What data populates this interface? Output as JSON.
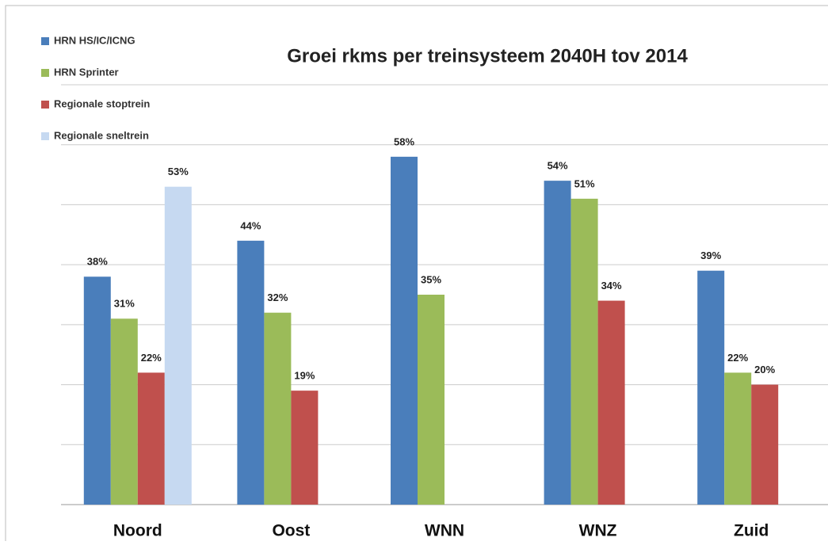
{
  "chart_data": {
    "type": "bar",
    "title": "Groei rkms per treinsysteem 2040H tov 2014",
    "categories": [
      "Noord",
      "Oost",
      "WNN",
      "WNZ",
      "Zuid"
    ],
    "series": [
      {
        "name": "HRN HS/IC/ICNG",
        "color": "#4a7ebb",
        "values": [
          38,
          44,
          58,
          54,
          39
        ],
        "value_labels": [
          "38%",
          "44%",
          "58%",
          "54%",
          "39%"
        ]
      },
      {
        "name": "HRN Sprinter",
        "color": "#9bbb59",
        "values": [
          31,
          32,
          35,
          51,
          22
        ],
        "value_labels": [
          "31%",
          "32%",
          "35%",
          "51%",
          "22%"
        ]
      },
      {
        "name": "Regionale stoptrein",
        "color": "#c0504d",
        "values": [
          22,
          19,
          null,
          34,
          20
        ],
        "value_labels": [
          "22%",
          "19%",
          null,
          "34%",
          "20%"
        ]
      },
      {
        "name": "Regionale sneltrein",
        "color": "#c6d9f1",
        "values": [
          53,
          null,
          null,
          null,
          null
        ],
        "value_labels": [
          "53%",
          null,
          null,
          null,
          null
        ]
      }
    ],
    "ylim": [
      0,
      70
    ],
    "yticks": [
      0,
      10,
      20,
      30,
      40,
      50,
      60,
      70
    ],
    "grid": true,
    "legend": "top-left"
  }
}
